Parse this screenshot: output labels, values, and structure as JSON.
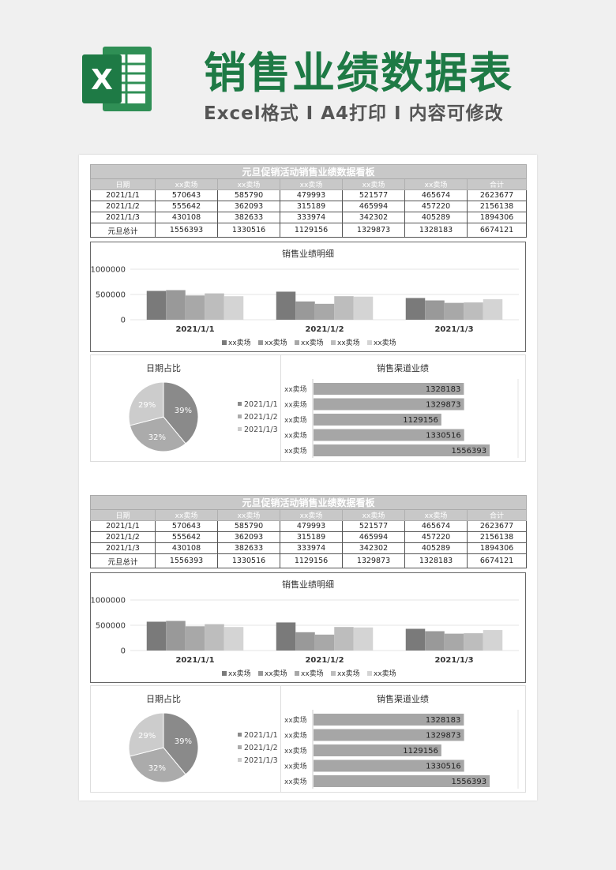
{
  "header": {
    "title": "销售业绩数据表",
    "subtitle": "Excel格式 I A4打印 I 内容可修改",
    "logo_letter": "X"
  },
  "boards": [
    {
      "table": {
        "title": "元旦促销活动销售业绩数据看板",
        "columns": [
          "日期",
          "xx卖场",
          "xx卖场",
          "xx卖场",
          "xx卖场",
          "xx卖场",
          "合计"
        ],
        "rows": [
          [
            "2021/1/1",
            "570643",
            "585790",
            "479993",
            "521577",
            "465674",
            "2623677"
          ],
          [
            "2021/1/2",
            "555642",
            "362093",
            "315189",
            "465994",
            "457220",
            "2156138"
          ],
          [
            "2021/1/3",
            "430108",
            "382633",
            "333974",
            "342302",
            "405289",
            "1894306"
          ],
          [
            "元旦总计",
            "1556393",
            "1330516",
            "1129156",
            "1329873",
            "1328183",
            "6674121"
          ]
        ]
      },
      "bar_chart_title": "销售业绩明细",
      "pie_title": "日期占比",
      "hbar_title": "销售渠道业绩"
    },
    {
      "table": {
        "title": "元旦促销活动销售业绩数据看板",
        "columns": [
          "日期",
          "xx卖场",
          "xx卖场",
          "xx卖场",
          "xx卖场",
          "xx卖场",
          "合计"
        ],
        "rows": [
          [
            "2021/1/1",
            "570643",
            "585790",
            "479993",
            "521577",
            "465674",
            "2623677"
          ],
          [
            "2021/1/2",
            "555642",
            "362093",
            "315189",
            "465994",
            "457220",
            "2156138"
          ],
          [
            "2021/1/3",
            "430108",
            "382633",
            "333974",
            "342302",
            "405289",
            "1894306"
          ],
          [
            "元旦总计",
            "1556393",
            "1330516",
            "1129156",
            "1329873",
            "1328183",
            "6674121"
          ]
        ]
      },
      "bar_chart_title": "销售业绩明细",
      "pie_title": "日期占比",
      "hbar_title": "销售渠道业绩"
    }
  ],
  "colors": {
    "brand_green": "#1e7a45",
    "series": [
      "#7a7a7a",
      "#999999",
      "#a8a8a8",
      "#bdbdbd",
      "#d4d4d4"
    ],
    "pie": [
      "#8a8a8a",
      "#ababab",
      "#cccccc"
    ],
    "hbar": "#a6a6a6"
  },
  "chart_data": [
    {
      "type": "bar",
      "title": "销售业绩明细",
      "categories": [
        "2021/1/1",
        "2021/1/2",
        "2021/1/3"
      ],
      "series": [
        {
          "name": "xx卖场",
          "values": [
            570643,
            555642,
            430108
          ]
        },
        {
          "name": "xx卖场",
          "values": [
            585790,
            362093,
            382633
          ]
        },
        {
          "name": "xx卖场",
          "values": [
            479993,
            315189,
            333974
          ]
        },
        {
          "name": "xx卖场",
          "values": [
            521577,
            465994,
            342302
          ]
        },
        {
          "name": "xx卖场",
          "values": [
            465674,
            457220,
            405289
          ]
        }
      ],
      "y_ticks": [
        "1000000",
        "500000",
        "0"
      ],
      "ylim": [
        0,
        1000000
      ],
      "legend": "bottom",
      "grid": true
    },
    {
      "type": "pie",
      "title": "日期占比",
      "labels": [
        "2021/1/1",
        "2021/1/2",
        "2021/1/3"
      ],
      "values": [
        39,
        32,
        29
      ],
      "value_labels": [
        "39%",
        "32%",
        "29%"
      ],
      "legend": "right"
    },
    {
      "type": "bar",
      "orientation": "horizontal",
      "title": "销售渠道业绩",
      "categories": [
        "xx卖场",
        "xx卖场",
        "xx卖场",
        "xx卖场",
        "xx卖场"
      ],
      "values": [
        1328183,
        1329873,
        1129156,
        1330516,
        1556393
      ],
      "value_labels": [
        "1328183",
        "1329873",
        "1129156",
        "1330516",
        "1556393"
      ],
      "xlim": [
        0,
        1800000
      ]
    }
  ]
}
